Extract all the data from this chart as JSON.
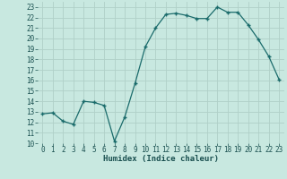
{
  "x": [
    0,
    1,
    2,
    3,
    4,
    5,
    6,
    7,
    8,
    9,
    10,
    11,
    12,
    13,
    14,
    15,
    16,
    17,
    18,
    19,
    20,
    21,
    22,
    23
  ],
  "y": [
    12.8,
    12.9,
    12.1,
    11.8,
    14.0,
    13.9,
    13.6,
    10.2,
    12.5,
    15.7,
    19.2,
    21.0,
    22.3,
    22.4,
    22.2,
    21.9,
    21.9,
    23.0,
    22.5,
    22.5,
    21.3,
    19.9,
    18.3,
    16.1
  ],
  "line_color": "#1a6b6b",
  "marker": "P",
  "marker_size": 2.5,
  "bg_color": "#c8e8e0",
  "grid_color": "#b0d0c8",
  "xlabel": "Humidex (Indice chaleur)",
  "xlim": [
    -0.5,
    23.5
  ],
  "ylim": [
    10,
    23.5
  ],
  "yticks": [
    10,
    11,
    12,
    13,
    14,
    15,
    16,
    17,
    18,
    19,
    20,
    21,
    22,
    23
  ],
  "xticks": [
    0,
    1,
    2,
    3,
    4,
    5,
    6,
    7,
    8,
    9,
    10,
    11,
    12,
    13,
    14,
    15,
    16,
    17,
    18,
    19,
    20,
    21,
    22,
    23
  ],
  "xlabel_fontsize": 6.5,
  "tick_fontsize": 5.5
}
